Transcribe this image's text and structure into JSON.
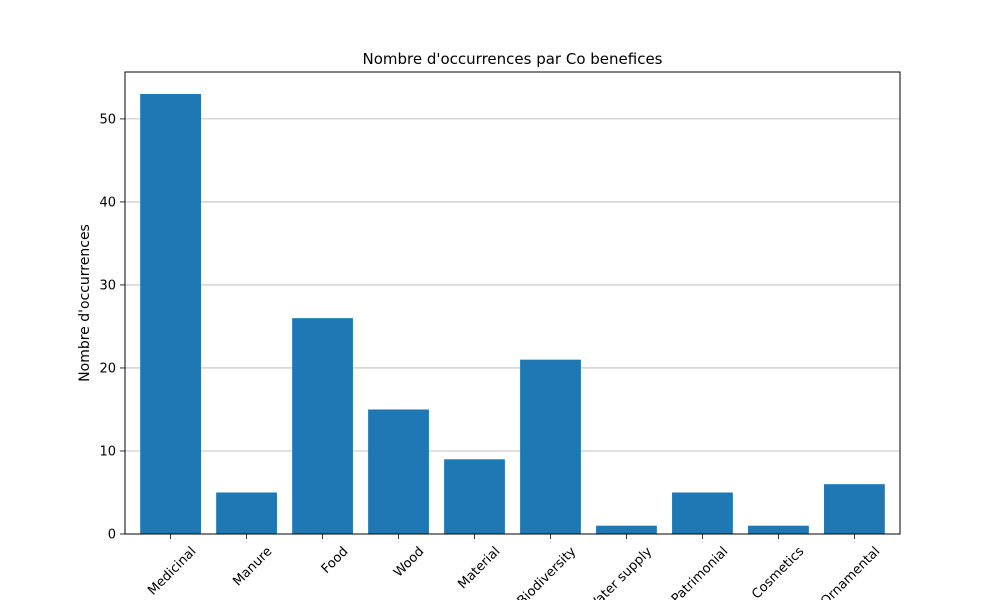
{
  "chart_data": {
    "type": "bar",
    "title": "Nombre d'occurrences par Co benefices",
    "xlabel": "",
    "ylabel": "Nombre d'occurrences",
    "categories": [
      "Medicinal",
      "Manure",
      "Food",
      "Wood",
      "Material",
      "Biodiversity",
      "Water supply",
      "Patrimonial",
      "Cosmetics",
      "Ornamental"
    ],
    "values": [
      53,
      5,
      26,
      15,
      9,
      21,
      1,
      5,
      1,
      6
    ],
    "ylim": [
      0,
      55.65
    ],
    "yticks": [
      0,
      10,
      20,
      30,
      40,
      50
    ],
    "grid": "y",
    "colors": {
      "bar": "#1f77b4",
      "grid": "#b0b0b0",
      "axis": "#000000"
    }
  }
}
